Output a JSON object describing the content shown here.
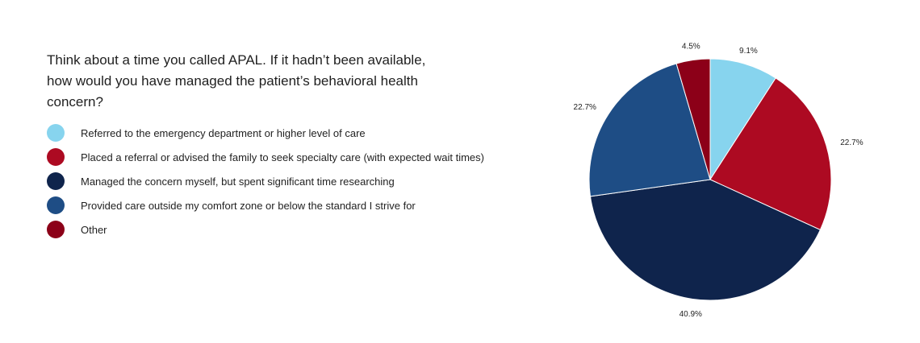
{
  "title": "Think about a time you called APAL. If it hadn’t been available, how would you have managed the patient’s behavioral health concern?",
  "chart_data": {
    "type": "pie",
    "title": "Think about a time you called APAL. If it hadn’t been available, how would you have managed the patient’s behavioral health concern?",
    "legend_position": "left",
    "slices": [
      {
        "name": "Referred to the emergency department or higher level of care",
        "value": 9.1,
        "label": "9.1%",
        "color": "#87d4ee"
      },
      {
        "name": "Placed a referral or advised the family to seek specialty care (with expected wait times)",
        "value": 22.7,
        "label": "22.7%",
        "color": "#ad0a22"
      },
      {
        "name": "Managed the concern myself, but spent significant time researching",
        "value": 40.9,
        "label": "40.9%",
        "color": "#0f244c"
      },
      {
        "name": "Provided care outside my comfort zone or below the standard I strive for",
        "value": 22.7,
        "label": "22.7%",
        "color": "#1e4d85"
      },
      {
        "name": "Other",
        "value": 4.5,
        "label": "4.5%",
        "color": "#8c0018"
      }
    ]
  }
}
